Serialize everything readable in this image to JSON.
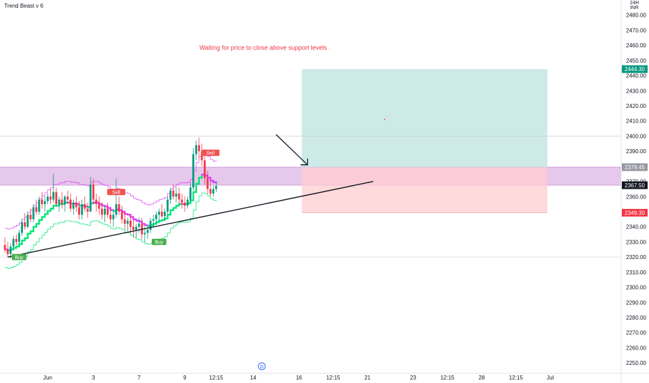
{
  "chart_data": {
    "type": "candlestick",
    "title": "Trend Beast v 6",
    "currency": "INR",
    "currency_prefix": "24H",
    "y_axis": {
      "min": 2245,
      "max": 2490,
      "ticks": [
        2250,
        2260,
        2270,
        2280,
        2290,
        2300,
        2310,
        2320,
        2330,
        2340,
        2350,
        2360,
        2370,
        2380,
        2390,
        2400,
        2410,
        2420,
        2430,
        2440,
        2450,
        2460,
        2470,
        2480
      ]
    },
    "x_axis_ticks": [
      {
        "label": "Jun",
        "bar": 15
      },
      {
        "label": "3",
        "bar": 31
      },
      {
        "label": "7",
        "bar": 47
      },
      {
        "label": "9",
        "bar": 63
      },
      {
        "label": "12:15",
        "bar": 74
      },
      {
        "label": "14",
        "bar": 87
      },
      {
        "label": "16",
        "bar": 103
      },
      {
        "label": "12:15",
        "bar": 115
      },
      {
        "label": "21",
        "bar": 127
      },
      {
        "label": "23",
        "bar": 143
      },
      {
        "label": "12:15",
        "bar": 155
      },
      {
        "label": "28",
        "bar": 167
      },
      {
        "label": "12:15",
        "bar": 179
      },
      {
        "label": "Jul",
        "bar": 191
      }
    ],
    "candles": [
      [
        2328,
        2333,
        2323,
        2325
      ],
      [
        2325,
        2330,
        2320,
        2322
      ],
      [
        2322,
        2329,
        2319,
        2327
      ],
      [
        2327,
        2334,
        2325,
        2332
      ],
      [
        2332,
        2335,
        2328,
        2330
      ],
      [
        2330,
        2338,
        2328,
        2336
      ],
      [
        2336,
        2345,
        2334,
        2343
      ],
      [
        2343,
        2349,
        2338,
        2340
      ],
      [
        2340,
        2350,
        2339,
        2348
      ],
      [
        2348,
        2352,
        2343,
        2345
      ],
      [
        2345,
        2355,
        2343,
        2353
      ],
      [
        2353,
        2358,
        2348,
        2350
      ],
      [
        2350,
        2360,
        2348,
        2358
      ],
      [
        2358,
        2363,
        2352,
        2355
      ],
      [
        2355,
        2360,
        2350,
        2357
      ],
      [
        2357,
        2362,
        2355,
        2360
      ],
      [
        2360,
        2365,
        2355,
        2358
      ],
      [
        2358,
        2375,
        2356,
        2363
      ],
      [
        2363,
        2366,
        2353,
        2355
      ],
      [
        2355,
        2360,
        2350,
        2358
      ],
      [
        2358,
        2363,
        2352,
        2355
      ],
      [
        2355,
        2361,
        2350,
        2360
      ],
      [
        2360,
        2364,
        2355,
        2358
      ],
      [
        2358,
        2362,
        2350,
        2352
      ],
      [
        2352,
        2358,
        2348,
        2356
      ],
      [
        2356,
        2360,
        2350,
        2353
      ],
      [
        2353,
        2357,
        2345,
        2348
      ],
      [
        2348,
        2358,
        2345,
        2355
      ],
      [
        2355,
        2360,
        2350,
        2352
      ],
      [
        2352,
        2356,
        2346,
        2350
      ],
      [
        2350,
        2373,
        2350,
        2368
      ],
      [
        2368,
        2372,
        2355,
        2358
      ],
      [
        2358,
        2362,
        2350,
        2355
      ],
      [
        2355,
        2360,
        2348,
        2352
      ],
      [
        2352,
        2356,
        2345,
        2348
      ],
      [
        2348,
        2354,
        2343,
        2352
      ],
      [
        2352,
        2356,
        2346,
        2348
      ],
      [
        2348,
        2352,
        2342,
        2345
      ],
      [
        2345,
        2350,
        2340,
        2348
      ],
      [
        2348,
        2372,
        2346,
        2355
      ],
      [
        2355,
        2360,
        2348,
        2350
      ],
      [
        2350,
        2354,
        2342,
        2345
      ],
      [
        2345,
        2350,
        2338,
        2342
      ],
      [
        2342,
        2346,
        2337,
        2344
      ],
      [
        2344,
        2348,
        2336,
        2340
      ],
      [
        2340,
        2345,
        2333,
        2338
      ],
      [
        2338,
        2342,
        2333,
        2340
      ],
      [
        2340,
        2346,
        2336,
        2342
      ],
      [
        2342,
        2346,
        2332,
        2335
      ],
      [
        2335,
        2340,
        2330,
        2336
      ],
      [
        2336,
        2340,
        2332,
        2338
      ],
      [
        2338,
        2346,
        2336,
        2344
      ],
      [
        2344,
        2348,
        2340,
        2345
      ],
      [
        2345,
        2350,
        2342,
        2348
      ],
      [
        2348,
        2352,
        2344,
        2350
      ],
      [
        2350,
        2355,
        2346,
        2347
      ],
      [
        2347,
        2352,
        2344,
        2350
      ],
      [
        2350,
        2360,
        2348,
        2358
      ],
      [
        2358,
        2366,
        2355,
        2364
      ],
      [
        2364,
        2368,
        2358,
        2360
      ],
      [
        2360,
        2366,
        2356,
        2362
      ],
      [
        2362,
        2366,
        2355,
        2358
      ],
      [
        2358,
        2362,
        2352,
        2356
      ],
      [
        2356,
        2360,
        2350,
        2354
      ],
      [
        2354,
        2360,
        2352,
        2358
      ],
      [
        2358,
        2369,
        2356,
        2366
      ],
      [
        2366,
        2392,
        2364,
        2388
      ],
      [
        2388,
        2397,
        2384,
        2394
      ],
      [
        2394,
        2399,
        2385,
        2390
      ],
      [
        2390,
        2395,
        2380,
        2384
      ],
      [
        2384,
        2388,
        2368,
        2372
      ],
      [
        2372,
        2377,
        2362,
        2365
      ],
      [
        2365,
        2370,
        2360,
        2362
      ],
      [
        2362,
        2367,
        2360,
        2365
      ],
      [
        2365,
        2370,
        2363,
        2367
      ]
    ],
    "support_band": {
      "from": 2367.5,
      "to": 2379.45
    },
    "support_line": {
      "from_bar": 1,
      "from_price": 2320,
      "to_bar": 129,
      "to_price": 2370
    },
    "horizontal_lines": [
      2400,
      2320
    ],
    "position": {
      "from_bar": 104,
      "to_bar": 190,
      "target": 2444.3,
      "entry": 2379.45,
      "stop": 2349.3
    },
    "price_labels": [
      {
        "value": 2444.3,
        "text": "2444.30",
        "color": "#089981"
      },
      {
        "value": 2379.45,
        "text": "2379.45",
        "color": "#9598a1"
      },
      {
        "value": 2367.5,
        "text": "2367.50",
        "color": "#131722"
      },
      {
        "value": 2349.3,
        "text": "2349.30",
        "color": "#f23645"
      }
    ],
    "signals": [
      {
        "text": "Buy",
        "bar": 5,
        "price": 2320,
        "kind": "buy"
      },
      {
        "text": "Sell",
        "bar": 39,
        "price": 2363,
        "kind": "sell"
      },
      {
        "text": "Buy",
        "bar": 54,
        "price": 2330,
        "kind": "buy"
      },
      {
        "text": "Sell",
        "bar": 72,
        "price": 2389,
        "kind": "sell"
      }
    ],
    "annotation": {
      "text": "Waiting for price to close above support levels .",
      "bar": 104,
      "price": 2457,
      "color": "#f23645"
    },
    "event_marker": {
      "text": "D",
      "bar": 90
    },
    "colors": {
      "up": "#089981",
      "down": "#f23645",
      "trend_up": "#00e676",
      "trend_down": "#e040fb",
      "band": "#e1bee7",
      "target_zone": "#b2dfdb",
      "stop_zone": "#ffcdd2"
    }
  }
}
